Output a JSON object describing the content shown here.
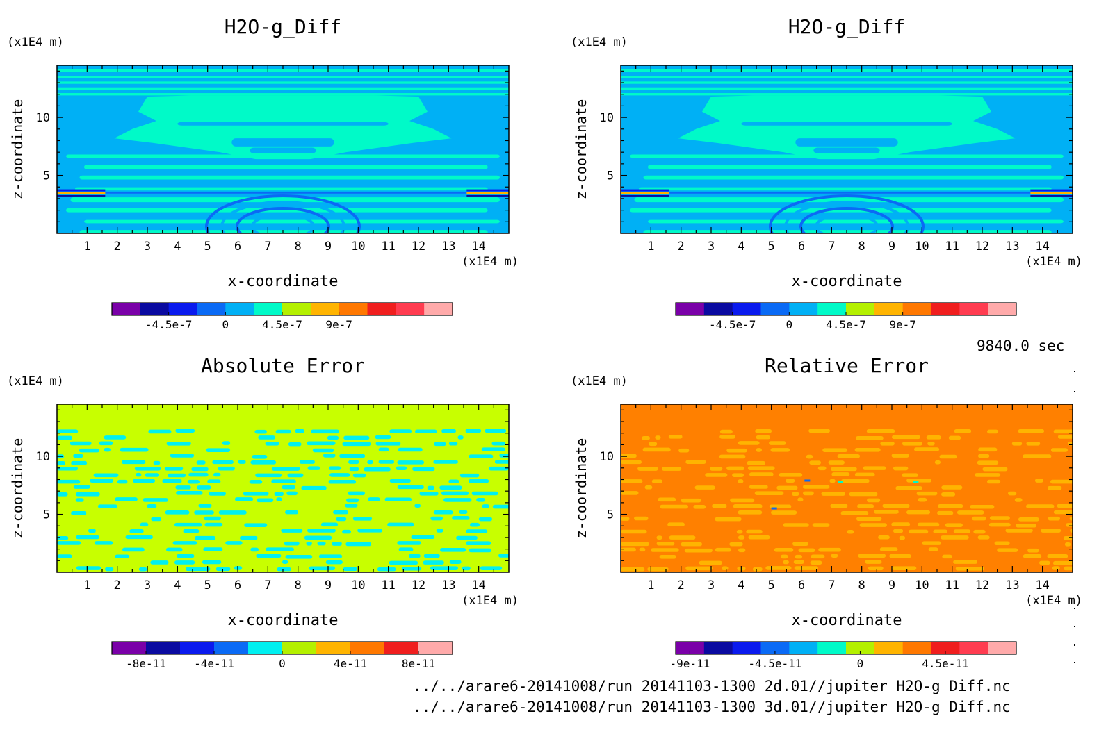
{
  "time_label": "9840.0 sec",
  "files": [
    "../../arare6-20141008/run_20141103-1300_2d.01//jupiter_H2O-g_Diff.nc",
    "../../arare6-20141008/run_20141103-1300_3d.01//jupiter_H2O-g_Diff.nc"
  ],
  "chart_data": [
    {
      "type": "heatmap",
      "title": "H2O-g_Diff",
      "xlabel": "x-coordinate",
      "ylabel": "z-coordinate",
      "x_unit": "(x1E4 m)",
      "y_unit": "(x1E4 m)",
      "xlim": [
        0,
        15
      ],
      "ylim": [
        0,
        14.5
      ],
      "x_ticks": [
        1,
        2,
        3,
        4,
        5,
        6,
        7,
        8,
        9,
        10,
        11,
        12,
        13,
        14
      ],
      "y_ticks": [
        5,
        10
      ],
      "pattern": "layered",
      "colorbar": {
        "colors": [
          "#7a00a8",
          "#0a0aa0",
          "#0a1aee",
          "#0a6af5",
          "#00b0f5",
          "#00fac8",
          "#b4f000",
          "#ffb400",
          "#ff7800",
          "#f01e1e",
          "#ff3c50",
          "#ffaaaa"
        ],
        "tick_labels": [
          "-4.5e-7",
          "0",
          "4.5e-7",
          "9e-7"
        ],
        "tick_positions": [
          2,
          4,
          6,
          8
        ]
      }
    },
    {
      "type": "heatmap",
      "title": "H2O-g_Diff",
      "xlabel": "x-coordinate",
      "ylabel": "z-coordinate",
      "x_unit": "(x1E4 m)",
      "y_unit": "(x1E4 m)",
      "xlim": [
        0,
        15
      ],
      "ylim": [
        0,
        14.5
      ],
      "x_ticks": [
        1,
        2,
        3,
        4,
        5,
        6,
        7,
        8,
        9,
        10,
        11,
        12,
        13,
        14
      ],
      "y_ticks": [
        5,
        10
      ],
      "pattern": "layered",
      "colorbar": {
        "colors": [
          "#7a00a8",
          "#0a0aa0",
          "#0a1aee",
          "#0a6af5",
          "#00b0f5",
          "#00fac8",
          "#b4f000",
          "#ffb400",
          "#ff7800",
          "#f01e1e",
          "#ff3c50",
          "#ffaaaa"
        ],
        "tick_labels": [
          "-4.5e-7",
          "0",
          "4.5e-7",
          "9e-7"
        ],
        "tick_positions": [
          2,
          4,
          6,
          8
        ]
      }
    },
    {
      "type": "heatmap",
      "title": "Absolute Error",
      "xlabel": "x-coordinate",
      "ylabel": "z-coordinate",
      "x_unit": "(x1E4 m)",
      "y_unit": "(x1E4 m)",
      "xlim": [
        0,
        15
      ],
      "ylim": [
        0,
        14.5
      ],
      "x_ticks": [
        1,
        2,
        3,
        4,
        5,
        6,
        7,
        8,
        9,
        10,
        11,
        12,
        13,
        14
      ],
      "y_ticks": [
        5,
        10
      ],
      "pattern": "noise",
      "background_top": "#c8ff00",
      "noise_colors": [
        "#00f0f0",
        "#c8ff00"
      ],
      "colorbar": {
        "colors": [
          "#7a00a8",
          "#0a0aa0",
          "#0a1aee",
          "#0a6af5",
          "#00f0f0",
          "#b4f000",
          "#ffb400",
          "#ff7800",
          "#f01e1e",
          "#ffaaaa"
        ],
        "tick_labels": [
          "-8e-11",
          "-4e-11",
          "0",
          "4e-11",
          "8e-11"
        ],
        "tick_positions": [
          1,
          3,
          5,
          7,
          9
        ]
      }
    },
    {
      "type": "heatmap",
      "title": "Relative Error",
      "xlabel": "x-coordinate",
      "ylabel": "z-coordinate",
      "x_unit": "(x1E4 m)",
      "y_unit": "(x1E4 m)",
      "xlim": [
        0,
        15
      ],
      "ylim": [
        0,
        14.5
      ],
      "x_ticks": [
        1,
        2,
        3,
        4,
        5,
        6,
        7,
        8,
        9,
        10,
        11,
        12,
        13,
        14
      ],
      "y_ticks": [
        5,
        10
      ],
      "pattern": "noise",
      "background_top": "#ff8000",
      "noise_colors": [
        "#ffb400",
        "#ff8000"
      ],
      "colorbar": {
        "colors": [
          "#7a00a8",
          "#0a0aa0",
          "#0a1aee",
          "#0a6af5",
          "#00b0f5",
          "#00fac8",
          "#b4f000",
          "#ffb400",
          "#ff7800",
          "#f01e1e",
          "#ff3c50",
          "#ffaaaa"
        ],
        "tick_labels": [
          "-9e-11",
          "-4.5e-11",
          "0",
          "4.5e-11"
        ],
        "tick_positions": [
          0.5,
          3.5,
          6.5,
          9.5
        ]
      }
    }
  ]
}
